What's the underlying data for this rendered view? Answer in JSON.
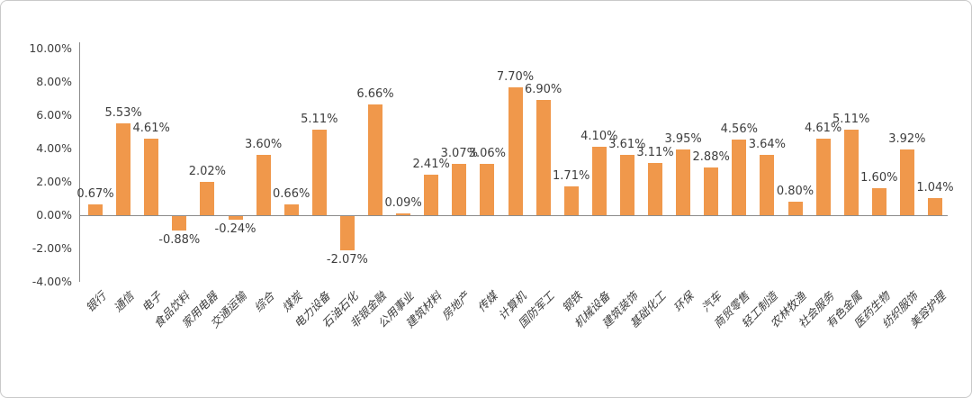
{
  "chart": {
    "bar_color": "#F0984B",
    "axis_line_color": "#8c8c8c",
    "text_color": "#3d3d3d",
    "frame_border_color": "#c9c9c9",
    "y_ticks": [
      {
        "label": "10.00%",
        "value": 10
      },
      {
        "label": "8.00%",
        "value": 8
      },
      {
        "label": "6.00%",
        "value": 6
      },
      {
        "label": "4.00%",
        "value": 4
      },
      {
        "label": "2.00%",
        "value": 2
      },
      {
        "label": "0.00%",
        "value": 0
      },
      {
        "label": "-2.00%",
        "value": -2
      },
      {
        "label": "-4.00%",
        "value": -4
      }
    ]
  },
  "chart_data": {
    "type": "bar",
    "title": "",
    "xlabel": "",
    "ylabel": "",
    "ylim": [
      -4,
      10
    ],
    "y_tick_step": 2,
    "grid": false,
    "legend": false,
    "categories": [
      "银行",
      "通信",
      "电子",
      "食品饮料",
      "家用电器",
      "交通运输",
      "综合",
      "煤炭",
      "电力设备",
      "石油石化",
      "非银金融",
      "公用事业",
      "建筑材料",
      "房地产",
      "传媒",
      "计算机",
      "国防军工",
      "钢铁",
      "机械设备",
      "建筑装饰",
      "基础化工",
      "环保",
      "汽车",
      "商贸零售",
      "轻工制造",
      "农林牧渔",
      "社会服务",
      "有色金属",
      "医药生物",
      "纺织服饰",
      "美容护理"
    ],
    "values": [
      0.67,
      5.53,
      4.61,
      -0.88,
      2.02,
      -0.24,
      3.6,
      0.66,
      5.11,
      -2.07,
      6.66,
      0.09,
      2.41,
      3.07,
      3.06,
      7.7,
      6.9,
      1.71,
      4.1,
      3.61,
      3.11,
      3.95,
      2.88,
      4.56,
      3.64,
      0.8,
      4.61,
      5.11,
      1.6,
      3.92,
      1.04
    ],
    "data_labels": [
      "0.67%",
      "5.53%",
      "4.61%",
      "-0.88%",
      "2.02%",
      "-0.24%",
      "3.60%",
      "0.66%",
      "5.11%",
      "-2.07%",
      "6.66%",
      "0.09%",
      "2.41%",
      "3.07%",
      "3.06%",
      "7.70%",
      "6.90%",
      "1.71%",
      "4.10%",
      "3.61%",
      "3.11%",
      "3.95%",
      "2.88%",
      "4.56%",
      "3.64%",
      "0.80%",
      "4.61%",
      "5.11%",
      "1.60%",
      "3.92%",
      "1.04%"
    ]
  }
}
